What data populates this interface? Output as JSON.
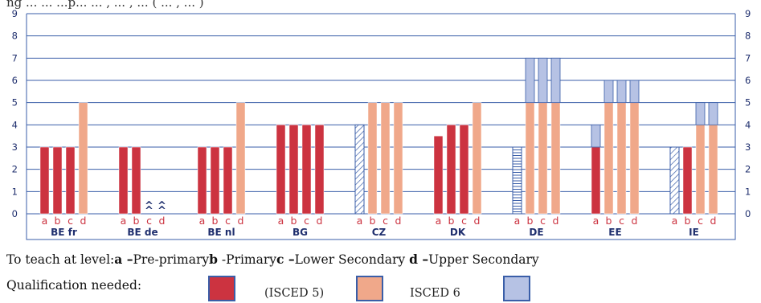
{
  "caption_fragment": "ng ... ... ...p... ... , ... , ... ( ... , ... )",
  "chart_data": {
    "type": "bar",
    "ylim": [
      0,
      9
    ],
    "yticks": [
      0,
      1,
      2,
      3,
      4,
      5,
      6,
      7,
      8,
      9
    ],
    "grid": true,
    "bar_letters": [
      "a",
      "b",
      "c",
      "d"
    ],
    "colors": {
      "isced5": "#cc3340",
      "isced6": "#f0a88a",
      "isced7": "#b6c2e4",
      "border": "#3a5ea8",
      "axis_text": "#1f2f6e"
    },
    "countries": [
      {
        "name": "BE fr",
        "bars": [
          {
            "isced5": 3
          },
          {
            "isced5": 3
          },
          {
            "isced5": 3
          },
          {
            "isced6": 5
          }
        ]
      },
      {
        "name": "BE de",
        "bars": [
          {
            "isced5": 3
          },
          {
            "isced5": 3
          },
          {
            "marker": "^"
          },
          {
            "marker": "^"
          }
        ]
      },
      {
        "name": "BE nl",
        "bars": [
          {
            "isced5": 3
          },
          {
            "isced5": 3
          },
          {
            "isced5": 3
          },
          {
            "isced6": 5
          }
        ]
      },
      {
        "name": "BG",
        "bars": [
          {
            "isced5": 4
          },
          {
            "isced5": 4
          },
          {
            "isced5": 4
          },
          {
            "isced5": 4
          }
        ]
      },
      {
        "name": "CZ",
        "bars": [
          {
            "hatch": 4,
            "pattern": "diagonal"
          },
          {
            "isced6": 5
          },
          {
            "isced6": 5
          },
          {
            "isced6": 5
          }
        ]
      },
      {
        "name": "DK",
        "bars": [
          {
            "isced5": 3.5
          },
          {
            "isced5": 4
          },
          {
            "isced5": 4
          },
          {
            "isced6": 5
          }
        ]
      },
      {
        "name": "DE",
        "bars": [
          {
            "hatch": 3,
            "pattern": "horizontal"
          },
          {
            "isced6": 5,
            "isced7": 7
          },
          {
            "isced6": 5,
            "isced7": 7
          },
          {
            "isced6": 5,
            "isced7": 7
          }
        ]
      },
      {
        "name": "EE",
        "bars": [
          {
            "isced5": 3,
            "isced7": 4
          },
          {
            "isced6": 5,
            "isced7": 6
          },
          {
            "isced6": 5,
            "isced7": 6
          },
          {
            "isced6": 5,
            "isced7": 6
          }
        ]
      },
      {
        "name": "IE",
        "bars": [
          {
            "hatch": 3,
            "pattern": "diagonal"
          },
          {
            "isced5": 3
          },
          {
            "isced6": 4,
            "isced7": 5
          },
          {
            "isced6": 4,
            "isced7": 5
          }
        ]
      }
    ]
  },
  "legend": {
    "teach_prefix": "To teach at level:",
    "levels": [
      {
        "key": "a",
        "sep": " –",
        "label": "Pre-primary"
      },
      {
        "key": "b",
        "sep": " -",
        "label": "Primary"
      },
      {
        "key": "c",
        "sep": " –",
        "label": "Lower Secondary "
      },
      {
        "key": "d",
        "sep": " –",
        "label": "Upper Secondary"
      }
    ],
    "qualification_label": "Qualification needed:",
    "isced5_label": "(ISCED 5)",
    "isced6_label": "ISCED 6"
  }
}
